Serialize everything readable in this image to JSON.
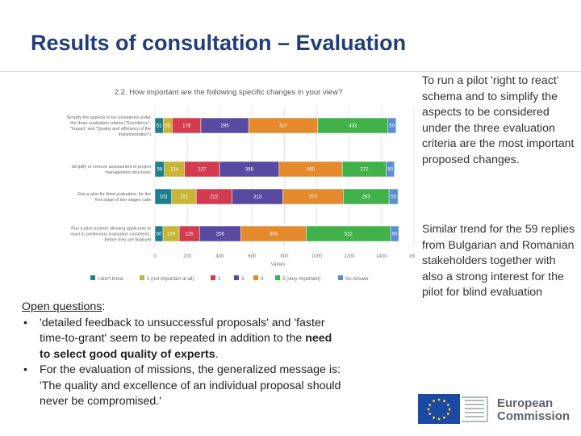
{
  "slide": {
    "title": "Results of consultation – Evaluation",
    "right_note_1": "To run a pilot 'right to react' schema and to simplify the aspects to be considered under the three evaluation criteria are the most important proposed changes.",
    "right_note_2": "Similar trend for the 59 replies from Bulgarian and Romanian stakeholders together with also a strong interest for the pilot for blind evaluation",
    "open_questions": {
      "heading": "Open questions",
      "colon": ":",
      "bullet_glyph": "•",
      "bullet1_pre": "'detailed feedback to unsuccessful proposals' and 'faster time-to-grant' seem to be repeated in addition to the ",
      "bullet1_bold": "need to select good quality of experts",
      "bullet1_post": ".",
      "bullet2": "For the evaluation of missions, the generalized message is: 'The quality and excellence of an individual proposal should never be compromised.'"
    },
    "logo": {
      "line1": "European",
      "line2": "Commission"
    }
  },
  "chart_data": {
    "type": "bar",
    "orientation": "horizontal-stacked",
    "title": "2.2. How important are the following specific changes in your view?",
    "xlabel": "Values",
    "xlim": [
      0,
      1600
    ],
    "xticks": [
      "0",
      "200",
      "400",
      "600",
      "800",
      "1000",
      "1200",
      "1400",
      "1600"
    ],
    "categories": [
      "Simplify the aspects to be considered under the three evaluation criteria (\"Excellence\", \"Impact\" and \"Quality and efficiency of the implementation\")",
      "Simplify or remove assessment of project management structures",
      "Run a pilot for blind evaluation, for the first stage of two-stages calls",
      "Run a pilot scheme allowing applicants to react to preliminary evaluation comments, before they are finalised"
    ],
    "series": [
      {
        "name": "I don't know",
        "color": "#1d7f8c",
        "values": [
          51,
          58,
          103,
          50
        ]
      },
      {
        "name": "1 (not important at all)",
        "color": "#c8b536",
        "values": [
          55,
          124,
          152,
          100
        ]
      },
      {
        "name": "2",
        "color": "#d33c4f",
        "values": [
          178,
          217,
          222,
          125
        ]
      },
      {
        "name": "3",
        "color": "#5a49a0",
        "values": [
          295,
          368,
          313,
          256
        ]
      },
      {
        "name": "4",
        "color": "#e48a2d",
        "values": [
          427,
          390,
          373,
          403
        ]
      },
      {
        "name": "5 (very important)",
        "color": "#41b24a",
        "values": [
          433,
          272,
          283,
          522
        ]
      },
      {
        "name": "No Answer",
        "color": "#5b8ed1",
        "values": [
          50,
          50,
          55,
          50
        ]
      }
    ]
  }
}
